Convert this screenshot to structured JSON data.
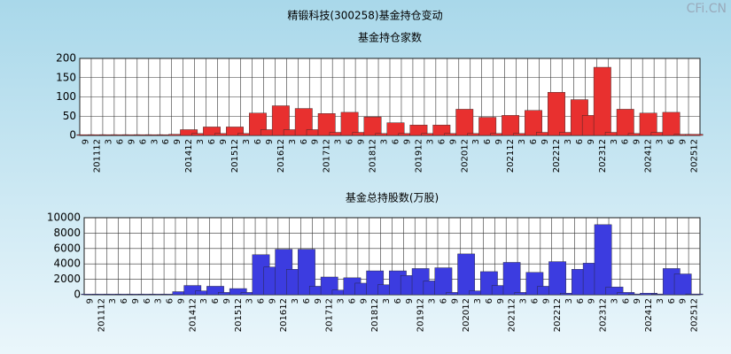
{
  "title": "精锻科技(300258)基金持仓变动",
  "watermark": "CFi.CN",
  "chart_data": [
    {
      "type": "bar",
      "title": "基金持仓家数",
      "categories": [
        "9",
        "201112",
        "3",
        "6",
        "9",
        "6",
        "3",
        "6",
        "9",
        "201412",
        "3",
        "6",
        "9",
        "201512",
        "3",
        "6",
        "9",
        "201612",
        "3",
        "6",
        "9",
        "201712",
        "3",
        "6",
        "9",
        "201812",
        "3",
        "6",
        "9",
        "201912",
        "3",
        "6",
        "9",
        "202012",
        "3",
        "6",
        "9",
        "202112",
        "3",
        "6",
        "9",
        "202212",
        "3",
        "6",
        "9",
        "202312",
        "3",
        "6",
        "9",
        "202412",
        "3",
        "6",
        "9",
        "202512"
      ],
      "values": [
        2,
        2,
        2,
        2,
        2,
        2,
        2,
        2,
        3,
        15,
        5,
        22,
        5,
        22,
        5,
        58,
        15,
        77,
        15,
        70,
        15,
        57,
        8,
        60,
        8,
        48,
        5,
        33,
        5,
        27,
        5,
        27,
        5,
        68,
        5,
        47,
        5,
        52,
        5,
        65,
        8,
        112,
        8,
        93,
        52,
        177,
        8,
        68,
        5,
        58,
        8,
        60,
        3,
        3
      ],
      "color": "#e8302f",
      "ylim": [
        0,
        200
      ],
      "yticks": [
        0,
        50,
        100,
        150,
        200
      ],
      "grid": true
    },
    {
      "type": "bar",
      "title": "基金总持股数(万股)",
      "categories": [
        "9",
        "201112",
        "3",
        "6",
        "9",
        "6",
        "3",
        "6",
        "9",
        "201412",
        "3",
        "6",
        "9",
        "201512",
        "3",
        "6",
        "9",
        "201612",
        "3",
        "6",
        "9",
        "201712",
        "3",
        "6",
        "9",
        "201812",
        "3",
        "6",
        "9",
        "201912",
        "3",
        "6",
        "9",
        "202012",
        "3",
        "6",
        "9",
        "202112",
        "3",
        "6",
        "9",
        "202212",
        "3",
        "6",
        "9",
        "202312",
        "3",
        "6",
        "9",
        "202412",
        "3",
        "6",
        "9",
        "202512"
      ],
      "values": [
        80,
        80,
        80,
        80,
        80,
        80,
        80,
        80,
        400,
        1200,
        500,
        1100,
        300,
        800,
        300,
        5200,
        3600,
        5900,
        3300,
        5900,
        1100,
        2300,
        600,
        2200,
        1500,
        3100,
        1300,
        3100,
        2500,
        3400,
        1800,
        3500,
        300,
        5300,
        500,
        3000,
        1200,
        4200,
        300,
        2900,
        1100,
        4300,
        200,
        3300,
        4100,
        9100,
        1000,
        300,
        100,
        200,
        100,
        3400,
        2700,
        100
      ],
      "color": "#3c3ce0",
      "ylim": [
        0,
        10000
      ],
      "yticks": [
        0,
        2000,
        4000,
        6000,
        8000,
        10000
      ],
      "grid": true
    }
  ]
}
